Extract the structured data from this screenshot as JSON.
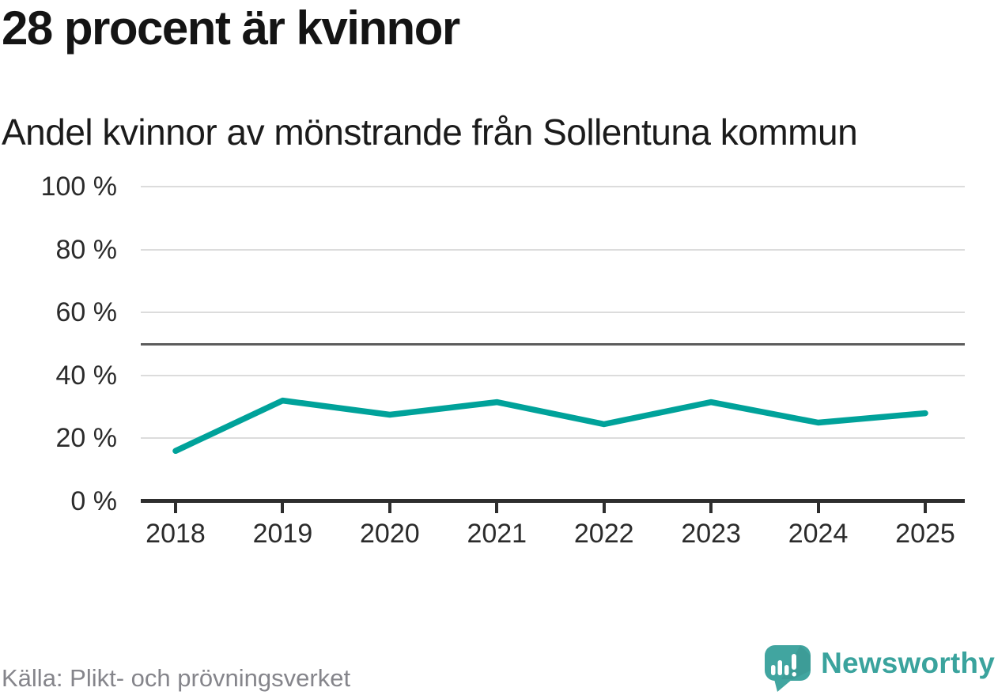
{
  "title": "28 procent är kvinnor",
  "subtitle": "Andel kvinnor av mönstrande från Sollentuna kommun",
  "source": "Källa: Plikt- och prövningsverket",
  "brand": {
    "name": "Newsworthy"
  },
  "colors": {
    "line": "#00a29a",
    "brand_teal": "#3fa5a0",
    "grid": "#dcdcdc",
    "reference_line": "#5c5c5c",
    "axis": "#2e2e2e",
    "title_text": "#141414",
    "muted_text": "#85858b"
  },
  "chart_data": {
    "type": "line",
    "x": [
      "2018",
      "2019",
      "2020",
      "2021",
      "2022",
      "2023",
      "2024",
      "2025"
    ],
    "values": [
      16,
      32,
      27.5,
      31.5,
      24.5,
      31.5,
      25,
      28
    ],
    "title": "28 procent är kvinnor",
    "subtitle": "Andel kvinnor av mönstrande från Sollentuna kommun",
    "xlabel": "",
    "ylabel": "",
    "ylim": [
      0,
      100
    ],
    "yticks": [
      {
        "value": 100,
        "label": "100 %"
      },
      {
        "value": 80,
        "label": "80 %"
      },
      {
        "value": 60,
        "label": "60 %"
      },
      {
        "value": 40,
        "label": "40 %"
      },
      {
        "value": 20,
        "label": "20 %"
      },
      {
        "value": 0,
        "label": "0 %"
      }
    ],
    "reference_line": 50,
    "grid": "horizontal",
    "legend": "none",
    "line_color": "#00a29a"
  }
}
